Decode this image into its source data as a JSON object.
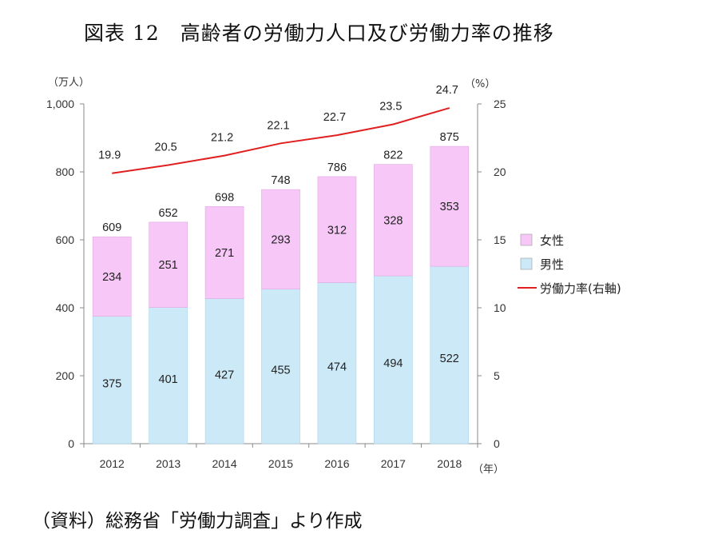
{
  "title": "図表 12　高齢者の労働力人口及び労働力率の推移",
  "source": "（資料）総務省「労働力調査」より作成",
  "chart_data": {
    "type": "bar",
    "categories": [
      "2012",
      "2013",
      "2014",
      "2015",
      "2016",
      "2017",
      "2018"
    ],
    "series": [
      {
        "name": "男性",
        "type": "bar",
        "axis": "left",
        "color": "#cce9f8",
        "values": [
          375,
          401,
          427,
          455,
          474,
          494,
          522
        ]
      },
      {
        "name": "女性",
        "type": "bar",
        "axis": "left",
        "color": "#f7c8f7",
        "values": [
          234,
          251,
          271,
          293,
          312,
          328,
          353
        ]
      },
      {
        "name": "労働力率(右軸)",
        "type": "line",
        "axis": "right",
        "color": "#e02020",
        "values": [
          19.9,
          20.5,
          21.2,
          22.1,
          22.7,
          23.5,
          24.7
        ]
      }
    ],
    "totals": [
      609,
      652,
      698,
      748,
      786,
      822,
      875
    ],
    "left_axis": {
      "unit_label": "（万人）",
      "ylim": [
        0,
        1000
      ],
      "ticks": [
        "0",
        "200",
        "400",
        "600",
        "800",
        "1,000"
      ]
    },
    "right_axis": {
      "unit_label": "（%）",
      "ylim": [
        0,
        25
      ],
      "ticks": [
        "0",
        "5",
        "10",
        "15",
        "20",
        "25"
      ]
    },
    "x_unit_label": "（年）",
    "legend": [
      {
        "label": "女性",
        "kind": "box",
        "color": "#f7c8f7"
      },
      {
        "label": "男性",
        "kind": "box",
        "color": "#cce9f8"
      },
      {
        "label": "労働力率(右軸)",
        "kind": "line",
        "color": "#e02020"
      }
    ],
    "legend_position": "right-middle",
    "grid": false
  }
}
